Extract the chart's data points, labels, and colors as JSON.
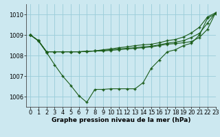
{
  "title": "Graphe pression niveau de la mer (hPa)",
  "background_color": "#cce8f0",
  "grid_color": "#99ccd9",
  "line_color": "#1a5c1a",
  "xlim": [
    -0.5,
    23
  ],
  "ylim": [
    1005.5,
    1010.5
  ],
  "yticks": [
    1006,
    1007,
    1008,
    1009,
    1010
  ],
  "xticks": [
    0,
    1,
    2,
    3,
    4,
    5,
    6,
    7,
    8,
    9,
    10,
    11,
    12,
    13,
    14,
    15,
    16,
    17,
    18,
    19,
    20,
    21,
    22,
    23
  ],
  "lines": [
    [
      1009.0,
      1008.7,
      1008.15,
      1007.55,
      1007.0,
      1006.55,
      1006.05,
      1005.72,
      1006.35,
      1006.35,
      1006.38,
      1006.38,
      1006.38,
      1006.38,
      1006.68,
      1007.38,
      1007.78,
      1008.18,
      1008.28,
      1008.48,
      1008.6,
      1009.0,
      1009.82,
      1010.02
    ],
    [
      1009.0,
      1008.72,
      1008.18,
      1008.18,
      1008.18,
      1008.18,
      1008.18,
      1008.2,
      1008.22,
      1008.28,
      1008.32,
      1008.38,
      1008.42,
      1008.48,
      1008.52,
      1008.55,
      1008.62,
      1008.72,
      1008.78,
      1008.9,
      1009.1,
      1009.38,
      1009.88,
      1010.08
    ],
    [
      1009.0,
      1008.72,
      1008.18,
      1008.18,
      1008.18,
      1008.18,
      1008.18,
      1008.2,
      1008.22,
      1008.25,
      1008.28,
      1008.32,
      1008.35,
      1008.38,
      1008.42,
      1008.45,
      1008.52,
      1008.6,
      1008.65,
      1008.72,
      1008.88,
      1009.08,
      1009.58,
      1010.08
    ],
    [
      1009.0,
      1008.72,
      1008.18,
      1008.18,
      1008.18,
      1008.18,
      1008.18,
      1008.2,
      1008.22,
      1008.22,
      1008.25,
      1008.28,
      1008.32,
      1008.35,
      1008.38,
      1008.42,
      1008.48,
      1008.55,
      1008.58,
      1008.62,
      1008.68,
      1008.88,
      1009.28,
      1010.08
    ]
  ],
  "marker": "+",
  "markersize": 3,
  "markeredgewidth": 1.0,
  "linewidth": 0.8,
  "title_fontsize": 6.5,
  "tick_fontsize": 6.0
}
